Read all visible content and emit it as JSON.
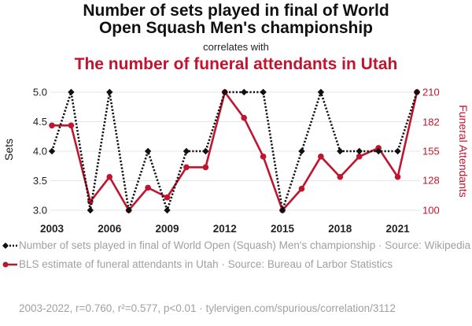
{
  "titles": {
    "main": "Number of sets played in final of World Open Squash Men's championship",
    "connector": "correlates with",
    "secondary": "The number of funeral attendants in Utah"
  },
  "colors": {
    "series1": "#111111",
    "series2": "#c0142f",
    "grid": "#e6e6e6",
    "muted": "#a0a0a0"
  },
  "chart_data": {
    "type": "line",
    "x": [
      2003,
      2004,
      2005,
      2006,
      2007,
      2008,
      2009,
      2010,
      2011,
      2012,
      2013,
      2014,
      2015,
      2016,
      2017,
      2018,
      2019,
      2020,
      2021,
      2022
    ],
    "x_ticks": [
      "2003",
      "2006",
      "2009",
      "2012",
      "2015",
      "2018",
      "2021"
    ],
    "series": [
      {
        "name": "Number of sets played in final of World Open (Squash) Men's championship",
        "axis": "left",
        "style": "dotted",
        "marker": "diamond",
        "values": [
          4,
          5,
          3,
          5,
          3,
          4,
          3,
          4,
          4,
          5,
          5,
          5,
          3,
          4,
          5,
          4,
          4,
          4,
          4,
          5
        ]
      },
      {
        "name": "BLS estimate of funeral attendants in Utah",
        "axis": "right",
        "style": "solid",
        "marker": "circle",
        "values": [
          179,
          179,
          108,
          131,
          100,
          121,
          112,
          140,
          140,
          210,
          186,
          150,
          100,
          120,
          150,
          131,
          150,
          158,
          131,
          210
        ]
      }
    ],
    "left_axis": {
      "label": "Sets",
      "ylim": [
        3.0,
        5.0
      ],
      "ticks": [
        "3.0",
        "3.5",
        "4.0",
        "4.5",
        "5.0"
      ]
    },
    "right_axis": {
      "label": "Funeral Attendants",
      "ylim": [
        100,
        210
      ],
      "ticks": [
        "100",
        "128",
        "155",
        "182",
        "210"
      ]
    }
  },
  "legend": {
    "item1": "Number of sets played in final of World Open (Squash) Men's championship · Source: Wikipedia",
    "item2": "BLS estimate of funeral attendants in Utah · Source: Bureau of Larbor Statistics"
  },
  "footer": "2003-2022, r=0.760, r²=0.577, p<0.01 · tylervigen.com/spurious/correlation/3112"
}
